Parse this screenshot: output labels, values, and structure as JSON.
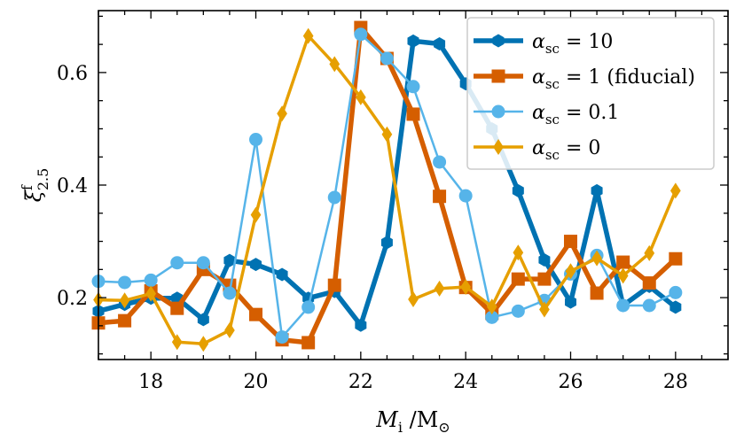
{
  "chart_data": {
    "type": "line",
    "title": "",
    "xlabel": "M_i / M_sun",
    "ylabel": "xi^f_2.5",
    "xlim": [
      17,
      29
    ],
    "ylim": [
      0.09,
      0.71
    ],
    "xticks": [
      18,
      20,
      22,
      24,
      26,
      28
    ],
    "yticks": [
      0.2,
      0.4,
      0.6
    ],
    "grid": false,
    "legend_position": "top-right",
    "series": [
      {
        "name": "α_sc = 10",
        "color": "#0072B2",
        "marker": "hexagon",
        "x": [
          17,
          17.5,
          18,
          18.5,
          19,
          19.5,
          20,
          20.5,
          21,
          21.5,
          22,
          22.5,
          23,
          23.5,
          24,
          24.5,
          25,
          25.5,
          26,
          26.5,
          27,
          27.5,
          28
        ],
        "y": [
          0.176,
          0.188,
          0.199,
          0.199,
          0.161,
          0.266,
          0.259,
          0.241,
          0.199,
          0.211,
          0.151,
          0.298,
          0.656,
          0.651,
          0.58,
          0.5,
          0.39,
          0.267,
          0.192,
          0.39,
          0.186,
          0.22,
          0.183
        ]
      },
      {
        "name": "α_sc = 1 (fiducial)",
        "color": "#D55E00",
        "marker": "square",
        "x": [
          17,
          17.5,
          18,
          18.5,
          19,
          19.5,
          20,
          20.5,
          21,
          21.5,
          22,
          22.5,
          23,
          23.5,
          24,
          24.5,
          25,
          25.5,
          26,
          26.5,
          27,
          27.5,
          28
        ],
        "y": [
          0.155,
          0.159,
          0.212,
          0.181,
          0.25,
          0.222,
          0.17,
          0.125,
          0.12,
          0.222,
          0.68,
          0.625,
          0.526,
          0.38,
          0.218,
          0.172,
          0.233,
          0.233,
          0.3,
          0.208,
          0.263,
          0.226,
          0.269
        ]
      },
      {
        "name": "α_sc = 0.1",
        "color": "#56B4E9",
        "marker": "circle",
        "x": [
          17,
          17.5,
          18,
          18.5,
          19,
          19.5,
          20,
          20.5,
          21,
          21.5,
          22,
          22.5,
          23,
          23.5,
          24,
          24.5,
          25,
          25.5,
          26,
          26.5,
          27,
          27.5,
          28
        ],
        "y": [
          0.229,
          0.227,
          0.231,
          0.262,
          0.262,
          0.208,
          0.481,
          0.13,
          0.183,
          0.378,
          0.668,
          0.625,
          0.575,
          0.441,
          0.381,
          0.165,
          0.176,
          0.195,
          0.242,
          0.275,
          0.186,
          0.186,
          0.209
        ]
      },
      {
        "name": "α_sc = 0",
        "color": "#E69F00",
        "marker": "diamond",
        "x": [
          17,
          17.5,
          18,
          18.5,
          19,
          19.5,
          20,
          20.5,
          21,
          21.5,
          22,
          22.5,
          23,
          23.5,
          24,
          24.5,
          25,
          25.5,
          26,
          26.5,
          27,
          27.5,
          28
        ],
        "y": [
          0.196,
          0.195,
          0.207,
          0.121,
          0.118,
          0.142,
          0.347,
          0.527,
          0.665,
          0.615,
          0.556,
          0.49,
          0.197,
          0.216,
          0.219,
          0.184,
          0.28,
          0.179,
          0.247,
          0.27,
          0.239,
          0.279,
          0.39
        ]
      }
    ]
  }
}
